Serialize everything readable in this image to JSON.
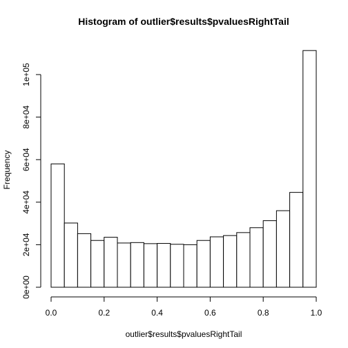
{
  "chart_data": {
    "type": "bar",
    "title": "Histogram of outlier$results$pvaluesRightTail",
    "xlabel": "outlier$results$pvaluesRightTail",
    "ylabel": "Frequency",
    "bin_edges": [
      0,
      0.05,
      0.1,
      0.15,
      0.2,
      0.25,
      0.3,
      0.35,
      0.4,
      0.45,
      0.5,
      0.55,
      0.6,
      0.65,
      0.7,
      0.75,
      0.8,
      0.85,
      0.9,
      0.95,
      1.0
    ],
    "values": [
      58000,
      30200,
      25200,
      22000,
      23500,
      20800,
      21000,
      20500,
      20600,
      20200,
      20000,
      22000,
      23700,
      24300,
      25700,
      28000,
      31300,
      36000,
      44600,
      111300
    ],
    "xlim": [
      0,
      1
    ],
    "ylim": [
      0,
      110000
    ],
    "x_ticks": [
      0.0,
      0.2,
      0.4,
      0.6,
      0.8,
      1.0
    ],
    "x_tick_labels": [
      "0.0",
      "0.2",
      "0.4",
      "0.6",
      "0.8",
      "1.0"
    ],
    "y_ticks": [
      0,
      20000,
      40000,
      60000,
      80000,
      100000
    ],
    "y_tick_labels": [
      "0e+00",
      "2e+04",
      "4e+04",
      "6e+04",
      "8e+04",
      "1e+05"
    ],
    "grid": false,
    "bar_fill": "#ffffff",
    "bar_stroke": "#000000"
  }
}
